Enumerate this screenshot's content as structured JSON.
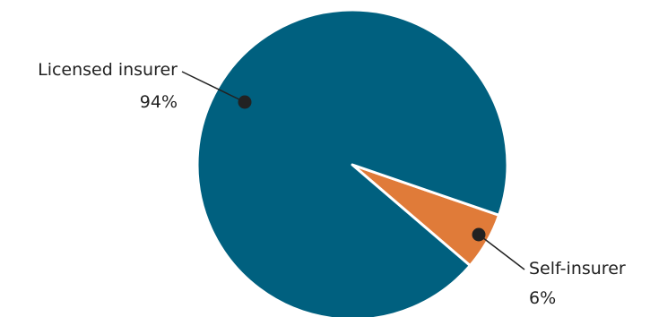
{
  "chart_data": {
    "type": "pie",
    "title": "",
    "slices": [
      {
        "label": "Licensed insurer",
        "value": 94,
        "value_label": "94%",
        "color": "#00607f"
      },
      {
        "label": "Self-insurer",
        "value": 6,
        "value_label": "6%",
        "color": "#e07b39"
      }
    ],
    "start_angle_deg": 19,
    "direction": "clockwise"
  }
}
